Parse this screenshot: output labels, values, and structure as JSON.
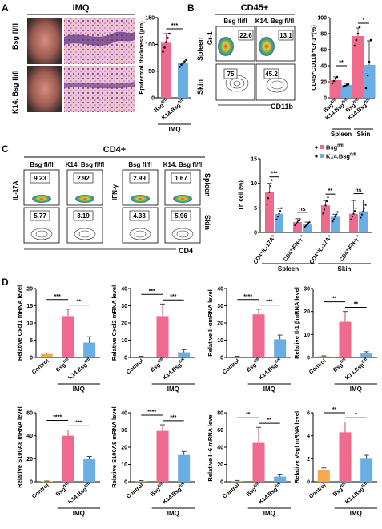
{
  "colors": {
    "pink": "#f06a8e",
    "blue": "#6aaee6",
    "orange": "#f5a84c",
    "sig": "#000000"
  },
  "panels": {
    "A": {
      "letter": "A",
      "header": "IMQ",
      "row_labels": [
        "Bsg fl/fl",
        "K14. Bsg fl/fl"
      ]
    },
    "B": {
      "letter": "B",
      "header": "CD45+",
      "col_labels": [
        "Bsg fl/fl",
        "K14. Bsg fl/fl"
      ],
      "row_labels": [
        "Spleen",
        "Skin"
      ],
      "axis_y": "Gr-1",
      "axis_x": "CD11b",
      "values": [
        "22.6",
        "13.1",
        "75",
        "45.2"
      ]
    },
    "C": {
      "letter": "C",
      "header": "CD4+",
      "col_labels": [
        "Bsg fl/fl",
        "K14. Bsg fl/fl",
        "Bsg fl/fl",
        "K14. Bsg fl/fl"
      ],
      "row_labels": [
        "Spleen",
        "Skin"
      ],
      "axis_y_left": "IL-17A",
      "axis_y_mid": "IFN-γ",
      "axis_x": "CD4",
      "values": [
        "9.23",
        "2.92",
        "2.99",
        "1.67",
        "5.77",
        "3.19",
        "4.33",
        "5.96"
      ]
    },
    "D": {
      "letter": "D"
    }
  },
  "chart_data": [
    {
      "id": "A-epi",
      "type": "bar",
      "categories": [
        "Bsg fl/fl",
        "K14.Bsg fl/fl"
      ],
      "values": [
        103,
        65
      ],
      "errors": [
        17,
        8
      ],
      "points": [
        [
          86,
          94,
          104,
          112,
          120
        ],
        [
          58,
          62,
          65,
          68,
          71
        ]
      ],
      "ylabel": "Epidermal thickness (μm)",
      "ylim": [
        0,
        150
      ],
      "yticks": [
        0,
        50,
        100,
        150
      ],
      "xgroup": "IMQ",
      "sig": [
        {
          "a": 0,
          "b": 1,
          "label": "***"
        }
      ]
    },
    {
      "id": "B-cd45",
      "type": "bar",
      "categories": [
        "Bsg fl/fl",
        "K14.Bsg fl/fl",
        "Bsg fl/fl",
        "K14.Bsg fl/fl"
      ],
      "values": [
        22,
        16,
        77,
        41
      ],
      "errors": [
        4,
        2,
        10,
        30
      ],
      "points": [
        [
          18,
          21,
          24,
          26
        ],
        [
          14,
          15,
          16,
          17
        ],
        [
          65,
          72,
          80,
          88
        ],
        [
          12,
          28,
          45,
          72
        ]
      ],
      "ylabel": "CD45⁺CD11b⁺Gr-1⁺(%)",
      "ylim": [
        0,
        100
      ],
      "yticks": [
        0,
        20,
        40,
        60,
        80,
        100
      ],
      "groups": [
        "Spleen",
        "Skin"
      ],
      "sig": [
        {
          "a": 0,
          "b": 1,
          "label": "**"
        },
        {
          "a": 2,
          "b": 3,
          "label": "*"
        }
      ]
    },
    {
      "id": "C-th",
      "type": "bar",
      "categories": [
        "CD4⁺IL-17A⁺",
        "CD4⁺IFN-γ⁺",
        "CD4⁺IL-17A⁺",
        "CD4⁺IFN-γ⁺"
      ],
      "series": [
        {
          "name": "Bsg fl/fl",
          "values": [
            8.2,
            2.1,
            5.5,
            3.8
          ],
          "errors": [
            1.8,
            0.7,
            1.0,
            2.7
          ]
        },
        {
          "name": "K14.Bsg fl/fl",
          "values": [
            3.8,
            1.6,
            3.2,
            4.3
          ],
          "errors": [
            1.1,
            0.5,
            0.5,
            2.3
          ]
        }
      ],
      "ylabel": "Th cell (%)",
      "ylim": [
        0,
        15
      ],
      "yticks": [
        0,
        5,
        10,
        15
      ],
      "groups": [
        "Spleen",
        "Skin"
      ],
      "sig": [
        {
          "cat": 0,
          "label": "***"
        },
        {
          "cat": 1,
          "label": "ns"
        },
        {
          "cat": 2,
          "label": "**"
        },
        {
          "cat": 3,
          "label": "ns"
        }
      ]
    },
    {
      "id": "D1",
      "type": "bar",
      "categories": [
        "Control",
        "Bsg fl/fl",
        "K14.Bsg fl/fl"
      ],
      "values": [
        1,
        12,
        4.3
      ],
      "errors": [
        0.3,
        2,
        1.7
      ],
      "ylabel": "Relative Cxcl1 mRNA level",
      "ylim": [
        0,
        20
      ],
      "yticks": [
        0,
        5,
        10,
        15,
        20
      ],
      "xgroup": "IMQ",
      "sig": [
        {
          "a": 0,
          "b": 1,
          "label": "***"
        },
        {
          "a": 1,
          "b": 2,
          "label": "**"
        }
      ]
    },
    {
      "id": "D2",
      "type": "bar",
      "categories": [
        "Control",
        "Bsg fl/fl",
        "K14.Bsg fl/fl"
      ],
      "values": [
        0.5,
        24,
        3
      ],
      "errors": [
        0.2,
        7,
        1.5
      ],
      "ylabel": "Relative Cxcl2 mRNA level",
      "ylim": [
        0,
        40
      ],
      "yticks": [
        0,
        10,
        20,
        30,
        40
      ],
      "xgroup": "IMQ",
      "sig": [
        {
          "a": 0,
          "b": 1,
          "label": "***"
        },
        {
          "a": 1,
          "b": 2,
          "label": "***"
        }
      ]
    },
    {
      "id": "D3",
      "type": "bar",
      "categories": [
        "Control",
        "Bsg fl/fl",
        "K14.Bsg fl/fl"
      ],
      "values": [
        0.5,
        25,
        10.5
      ],
      "errors": [
        0.2,
        3,
        2.5
      ],
      "ylabel": "Relative Il-αmRNA level",
      "ylim": [
        0,
        40
      ],
      "yticks": [
        0,
        10,
        20,
        30,
        40
      ],
      "xgroup": "IMQ",
      "sig": [
        {
          "a": 0,
          "b": 1,
          "label": "****"
        },
        {
          "a": 1,
          "b": 2,
          "label": "***"
        }
      ]
    },
    {
      "id": "D4",
      "type": "bar",
      "categories": [
        "Control",
        "Bsg fl/fl",
        "K14.Bsg fl/fl"
      ],
      "values": [
        0.5,
        15.5,
        1.7
      ],
      "errors": [
        0.2,
        4.5,
        0.8
      ],
      "ylabel": "Relative Il-1 βmRNA level",
      "ylim": [
        0,
        30
      ],
      "yticks": [
        0,
        10,
        20,
        30
      ],
      "xgroup": "IMQ",
      "sig": [
        {
          "a": 0,
          "b": 1,
          "label": "**"
        },
        {
          "a": 1,
          "b": 2,
          "label": "**"
        }
      ]
    },
    {
      "id": "D5",
      "type": "bar",
      "categories": [
        "Control",
        "Bsg fl/fl",
        "K14.Bsg fl/fl"
      ],
      "values": [
        0.5,
        40,
        19.5
      ],
      "errors": [
        0.2,
        5,
        2.5
      ],
      "ylabel": "Relative S100A8 mRNA level",
      "ylim": [
        0,
        60
      ],
      "yticks": [
        0,
        20,
        40,
        60
      ],
      "xgroup": "IMQ",
      "sig": [
        {
          "a": 0,
          "b": 1,
          "label": "****"
        },
        {
          "a": 1,
          "b": 2,
          "label": "***"
        }
      ]
    },
    {
      "id": "D6",
      "type": "bar",
      "categories": [
        "Control",
        "Bsg fl/fl",
        "K14.Bsg fl/fl"
      ],
      "values": [
        0.5,
        29.5,
        15.5
      ],
      "errors": [
        0.2,
        3.5,
        2
      ],
      "ylabel": "Relative S100A9 mRNA level",
      "ylim": [
        0,
        40
      ],
      "yticks": [
        0,
        10,
        20,
        30,
        40
      ],
      "xgroup": "IMQ",
      "sig": [
        {
          "a": 0,
          "b": 1,
          "label": "****"
        },
        {
          "a": 1,
          "b": 2,
          "label": "***"
        }
      ]
    },
    {
      "id": "D7",
      "type": "bar",
      "categories": [
        "Control",
        "Bsg fl/fl",
        "K14.Bsg fl/fl"
      ],
      "values": [
        1,
        45,
        6
      ],
      "errors": [
        0.5,
        18,
        2
      ],
      "ylabel": "Relative Il-6 mRNA level",
      "ylim": [
        0,
        80
      ],
      "yticks": [
        0,
        20,
        40,
        60,
        80
      ],
      "xgroup": "IMQ",
      "sig": [
        {
          "a": 0,
          "b": 1,
          "label": "**"
        },
        {
          "a": 1,
          "b": 2,
          "label": "**"
        }
      ]
    },
    {
      "id": "D8",
      "type": "bar",
      "categories": [
        "Control",
        "Bsg fl/fl",
        "K14.Bsg fl/fl"
      ],
      "values": [
        1,
        4.3,
        2
      ],
      "errors": [
        0.2,
        0.9,
        0.3
      ],
      "ylabel": "Relative Vegf mRNA level",
      "ylim": [
        0,
        6
      ],
      "yticks": [
        0,
        2,
        4,
        6
      ],
      "xgroup": "IMQ",
      "sig": [
        {
          "a": 0,
          "b": 1,
          "label": "**"
        },
        {
          "a": 1,
          "b": 2,
          "label": "*"
        }
      ]
    }
  ]
}
